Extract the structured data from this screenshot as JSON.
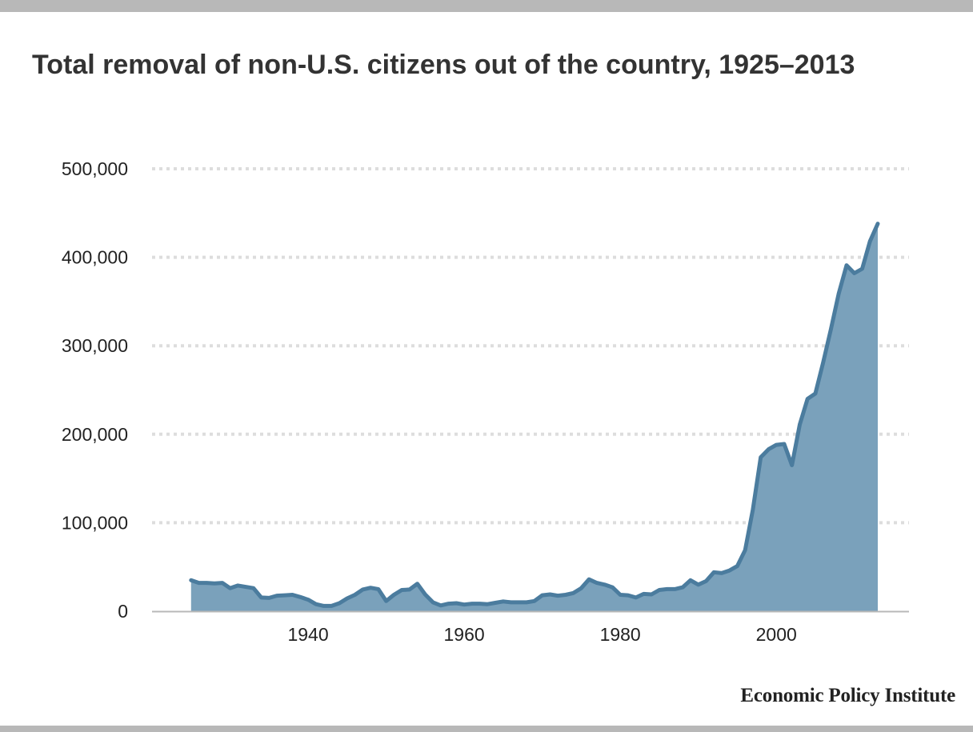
{
  "title": "Total removal of non-U.S. citizens out of the country, 1925–2013",
  "source": "Economic Policy Institute",
  "colors": {
    "area": "#7aa1bb",
    "line": "#4b7c9e",
    "grid": "#dddddd",
    "frame": "#b8b8b8"
  },
  "chart_data": {
    "type": "area",
    "title": "Total removal of non-U.S. citizens out of the country, 1925–2013",
    "xlabel": "",
    "ylabel": "",
    "xlim": [
      1920,
      2017
    ],
    "ylim": [
      0,
      500000
    ],
    "x_ticks": [
      1940,
      1960,
      1980,
      2000
    ],
    "x_tick_labels": [
      "1940",
      "1960",
      "1980",
      "2000"
    ],
    "y_ticks": [
      0,
      100000,
      200000,
      300000,
      400000,
      500000
    ],
    "y_tick_labels": [
      "0",
      "100,000",
      "200,000",
      "300,000",
      "400,000",
      "500,000"
    ],
    "grid": true,
    "series": [
      {
        "x": [
          1925,
          1926,
          1927,
          1928,
          1929,
          1930,
          1931,
          1932,
          1933,
          1934,
          1935,
          1936,
          1937,
          1938,
          1939,
          1940,
          1941,
          1942,
          1943,
          1944,
          1945,
          1946,
          1947,
          1948,
          1949,
          1950,
          1951,
          1952,
          1953,
          1954,
          1955,
          1956,
          1957,
          1958,
          1959,
          1960,
          1961,
          1962,
          1963,
          1964,
          1965,
          1966,
          1967,
          1968,
          1969,
          1970,
          1971,
          1972,
          1973,
          1974,
          1975,
          1976,
          1977,
          1978,
          1979,
          1980,
          1981,
          1982,
          1983,
          1984,
          1985,
          1986,
          1987,
          1988,
          1989,
          1990,
          1991,
          1992,
          1993,
          1994,
          1995,
          1996,
          1997,
          1998,
          1999,
          2000,
          2001,
          2002,
          2003,
          2004,
          2005,
          2006,
          2007,
          2008,
          2009,
          2010,
          2011,
          2012,
          2013
        ],
        "values": [
          35000,
          32000,
          32000,
          31500,
          32000,
          26000,
          29000,
          27500,
          26000,
          15500,
          15000,
          17500,
          18000,
          18500,
          16000,
          13000,
          8000,
          6000,
          6000,
          9000,
          14500,
          18500,
          24500,
          26500,
          25000,
          11500,
          18500,
          24000,
          24500,
          31000,
          19000,
          10000,
          6500,
          8500,
          9000,
          7500,
          8500,
          8500,
          8000,
          9500,
          11000,
          10000,
          10000,
          10000,
          11500,
          18000,
          19000,
          17500,
          18500,
          20500,
          26000,
          36000,
          32000,
          30000,
          27000,
          18500,
          18000,
          15500,
          19500,
          19000,
          24000,
          25000,
          25000,
          27000,
          35000,
          30000,
          34000,
          44000,
          43000,
          46000,
          51000,
          69000,
          115000,
          174000,
          183000,
          188000,
          189000,
          165000,
          211000,
          240000,
          246000,
          281000,
          319000,
          359000,
          391000,
          382000,
          387000,
          418000,
          438000
        ]
      }
    ]
  }
}
